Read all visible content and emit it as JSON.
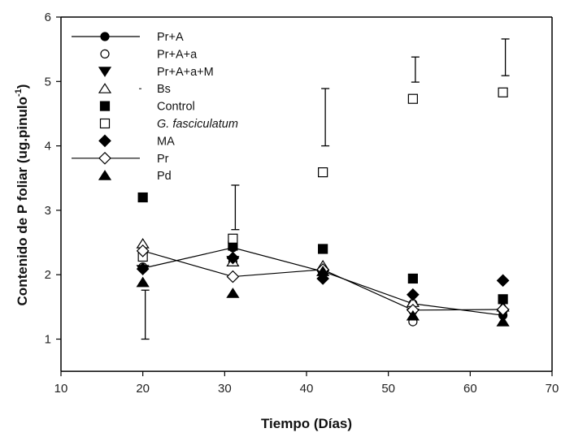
{
  "chart_data": {
    "type": "scatter",
    "title": "",
    "xlabel": "Tiempo (Días)",
    "ylabel": "Contenido de P foliar (ug.pinulo",
    "ylabel_superscript": "-1",
    "ylabel_suffix": ")",
    "xlim": [
      10,
      70
    ],
    "ylim": [
      0.5,
      6
    ],
    "xticks": [
      10,
      20,
      30,
      40,
      50,
      60,
      70
    ],
    "yticks": [
      1,
      2,
      3,
      4,
      5,
      6
    ],
    "grid": false,
    "legend_position": "top-left",
    "x": [
      20,
      31,
      42,
      53,
      64
    ],
    "series": [
      {
        "name": "Pr+A",
        "marker": "filled-circle",
        "line": true,
        "italic": false,
        "values": [
          2.1,
          2.42,
          2.05,
          1.55,
          1.37
        ]
      },
      {
        "name": "Pr+A+a",
        "marker": "open-circle",
        "line": false,
        "italic": false,
        "values": [
          2.12,
          2.2,
          2.02,
          1.27,
          1.45
        ]
      },
      {
        "name": "Pr+A+a+M",
        "marker": "filled-triangle-down",
        "line": false,
        "italic": false,
        "values": [
          2.08,
          2.22,
          2.0,
          1.4,
          1.4
        ]
      },
      {
        "name": "Bs",
        "marker": "open-triangle-up",
        "line": false,
        "italic": false,
        "values": [
          2.48,
          2.2,
          2.14,
          1.57,
          1.5
        ]
      },
      {
        "name": "Control",
        "marker": "filled-square",
        "line": false,
        "italic": false,
        "values": [
          3.2,
          2.45,
          2.4,
          1.94,
          1.62
        ]
      },
      {
        "name": "G. fasciculatum",
        "marker": "open-square",
        "line": false,
        "italic": true,
        "values": [
          2.28,
          2.56,
          3.59,
          4.73,
          4.83
        ]
      },
      {
        "name": "MA",
        "marker": "filled-diamond",
        "line": false,
        "italic": false,
        "values": [
          2.09,
          2.26,
          1.94,
          1.69,
          1.91
        ]
      },
      {
        "name": "Pr",
        "marker": "open-diamond",
        "line": true,
        "italic": false,
        "values": [
          2.37,
          1.97,
          2.08,
          1.45,
          1.46
        ]
      },
      {
        "name": "Pd",
        "marker": "filled-triangle-up",
        "line": false,
        "italic": false,
        "values": [
          1.88,
          1.71,
          2.05,
          1.36,
          1.27
        ]
      }
    ],
    "error_bars": [
      {
        "x": 20,
        "low": 1.0,
        "high": 1.76
      },
      {
        "x": 31,
        "low": 2.7,
        "high": 3.39
      },
      {
        "x": 42,
        "low": 4.0,
        "high": 4.89
      },
      {
        "x": 53,
        "low": 4.99,
        "high": 5.38
      },
      {
        "x": 64,
        "low": 5.09,
        "high": 5.66
      }
    ]
  }
}
